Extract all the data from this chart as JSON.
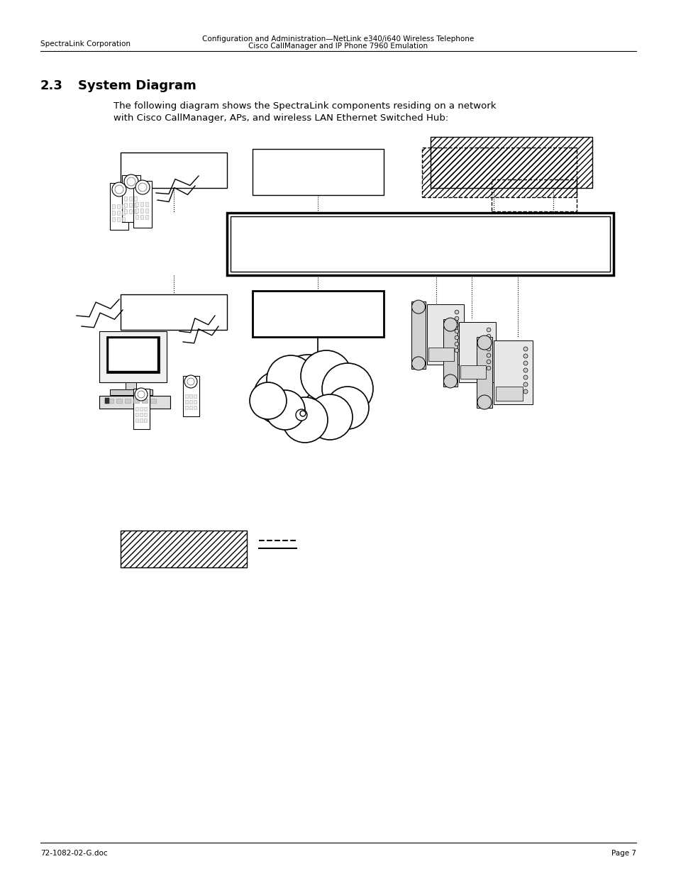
{
  "header_left": "SpectraLink Corporation",
  "header_right_line1": "Configuration and Administration—NetLink e340/i640 Wireless Telephone",
  "header_right_line2": "Cisco CallManager and IP Phone 7960 Emulation",
  "footer_left": "72-1082-02-G.doc",
  "footer_right": "Page 7",
  "section_number": "2.3",
  "section_title": "System Diagram",
  "body_line1": "The following diagram shows the SpectraLink components residing on a network",
  "body_line2": "with Cisco CallManager, APs, and wireless LAN Ethernet Switched Hub:",
  "bg_color": "#ffffff"
}
